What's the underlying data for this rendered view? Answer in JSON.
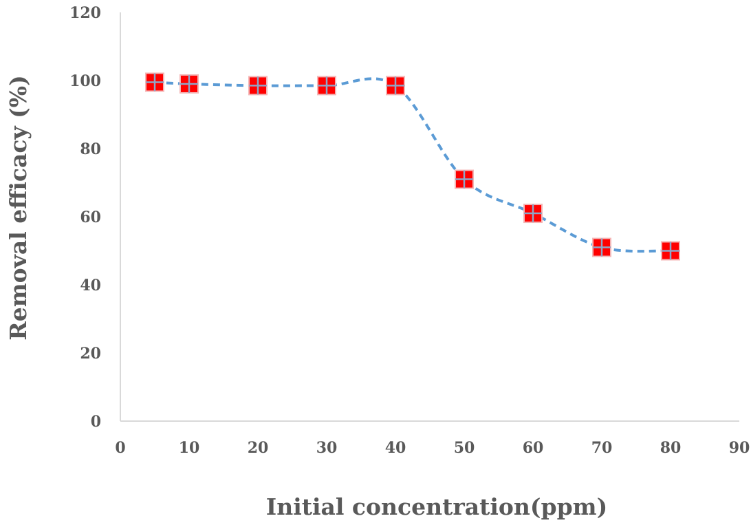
{
  "chart_data": {
    "type": "line",
    "title": "",
    "xlabel": "Initial concentration(ppm)",
    "ylabel": "Removal efficacy (%)",
    "xlim": [
      0,
      90
    ],
    "ylim": [
      0,
      120
    ],
    "x_ticks": [
      "0",
      "10",
      "20",
      "30",
      "40",
      "50",
      "60",
      "70",
      "80",
      "90"
    ],
    "y_ticks": [
      "0",
      "20",
      "40",
      "60",
      "80",
      "100",
      "120"
    ],
    "grid": false,
    "legend": "none",
    "series": [
      {
        "name": "Removal efficacy",
        "x": [
          5,
          10,
          20,
          30,
          40,
          50,
          60,
          70,
          80
        ],
        "values": [
          99.5,
          99,
          98.5,
          98.5,
          98.5,
          71,
          61,
          51,
          50
        ],
        "line_color": "#5b9bd5",
        "marker_color": "#ff0000",
        "line_style": "dashed-smooth",
        "marker": "square-with-cross"
      }
    ]
  }
}
